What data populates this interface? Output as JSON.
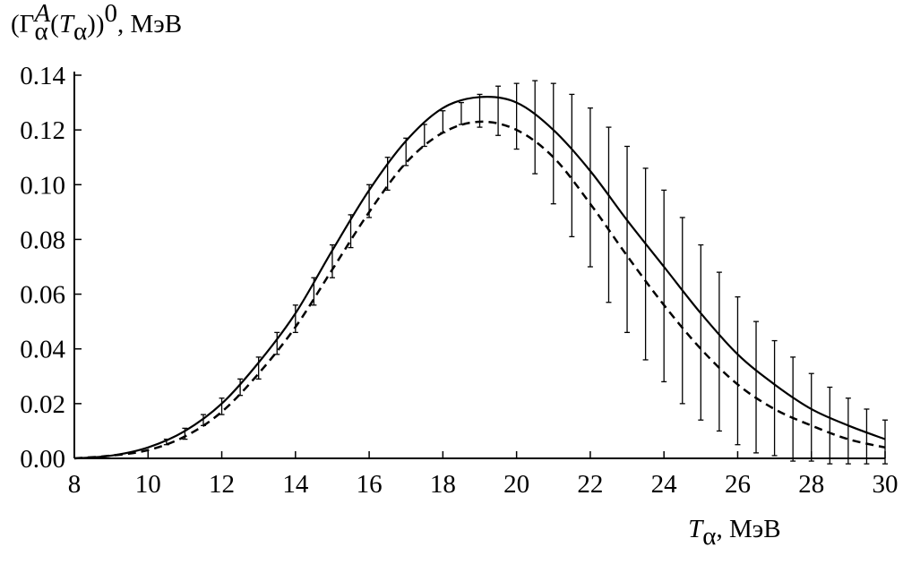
{
  "chart_data": {
    "type": "line",
    "y_label_parts": [
      "(Γ",
      "A",
      "α",
      "(",
      "T",
      "α",
      "))",
      "0",
      ", МэВ"
    ],
    "x_label_parts": [
      "T",
      "α",
      ", МэВ"
    ],
    "xlim": [
      8,
      30
    ],
    "ylim": [
      0,
      0.14
    ],
    "xticks": [
      8,
      10,
      12,
      14,
      16,
      18,
      20,
      22,
      24,
      26,
      28,
      30
    ],
    "yticks": [
      {
        "value": 0,
        "label": "0.00"
      },
      {
        "value": 0.02,
        "label": "0.02"
      },
      {
        "value": 0.04,
        "label": "0.04"
      },
      {
        "value": 0.06,
        "label": "0.06"
      },
      {
        "value": 0.08,
        "label": "0.08"
      },
      {
        "value": 0.1,
        "label": "0.10"
      },
      {
        "value": 0.12,
        "label": "0.12"
      },
      {
        "value": 0.14,
        "label": "0.14"
      }
    ],
    "x": [
      8,
      9,
      10,
      11,
      12,
      13,
      14,
      15,
      16,
      17,
      18,
      19,
      20,
      21,
      22,
      23,
      24,
      25,
      26,
      27,
      28,
      29,
      30
    ],
    "series": [
      {
        "style": "solid",
        "color": "#000000",
        "values": [
          0.0,
          0.001,
          0.004,
          0.01,
          0.02,
          0.035,
          0.053,
          0.076,
          0.098,
          0.116,
          0.128,
          0.132,
          0.13,
          0.12,
          0.105,
          0.087,
          0.07,
          0.053,
          0.038,
          0.027,
          0.018,
          0.012,
          0.007
        ]
      },
      {
        "style": "dashed",
        "color": "#000000",
        "values": [
          0.0,
          0.001,
          0.003,
          0.008,
          0.017,
          0.031,
          0.048,
          0.069,
          0.09,
          0.108,
          0.119,
          0.123,
          0.12,
          0.11,
          0.093,
          0.074,
          0.056,
          0.04,
          0.027,
          0.018,
          0.012,
          0.007,
          0.004
        ]
      }
    ],
    "points": {
      "color": "#000000",
      "x": [
        10.5,
        11,
        11.5,
        12,
        12.5,
        13,
        13.5,
        14,
        14.5,
        15,
        15.5,
        16,
        16.5,
        17,
        17.5,
        18,
        18.5,
        19,
        19.5,
        20,
        20.5,
        21,
        21.5,
        22,
        22.5,
        23,
        23.5,
        24,
        24.5,
        25,
        25.5,
        26,
        26.5,
        27,
        27.5,
        28,
        28.5,
        29,
        29.5,
        30
      ],
      "values": [
        0.006,
        0.009,
        0.014,
        0.019,
        0.026,
        0.033,
        0.042,
        0.051,
        0.061,
        0.072,
        0.083,
        0.094,
        0.104,
        0.112,
        0.118,
        0.123,
        0.126,
        0.127,
        0.127,
        0.125,
        0.121,
        0.115,
        0.107,
        0.099,
        0.089,
        0.08,
        0.071,
        0.063,
        0.054,
        0.046,
        0.039,
        0.032,
        0.026,
        0.022,
        0.018,
        0.015,
        0.012,
        0.01,
        0.008,
        0.006
      ],
      "errors": [
        0.001,
        0.002,
        0.002,
        0.003,
        0.003,
        0.004,
        0.004,
        0.005,
        0.005,
        0.006,
        0.006,
        0.006,
        0.006,
        0.005,
        0.004,
        0.004,
        0.004,
        0.006,
        0.009,
        0.012,
        0.017,
        0.022,
        0.026,
        0.029,
        0.032,
        0.034,
        0.035,
        0.035,
        0.034,
        0.032,
        0.029,
        0.027,
        0.024,
        0.021,
        0.019,
        0.016,
        0.014,
        0.012,
        0.01,
        0.008
      ]
    }
  }
}
